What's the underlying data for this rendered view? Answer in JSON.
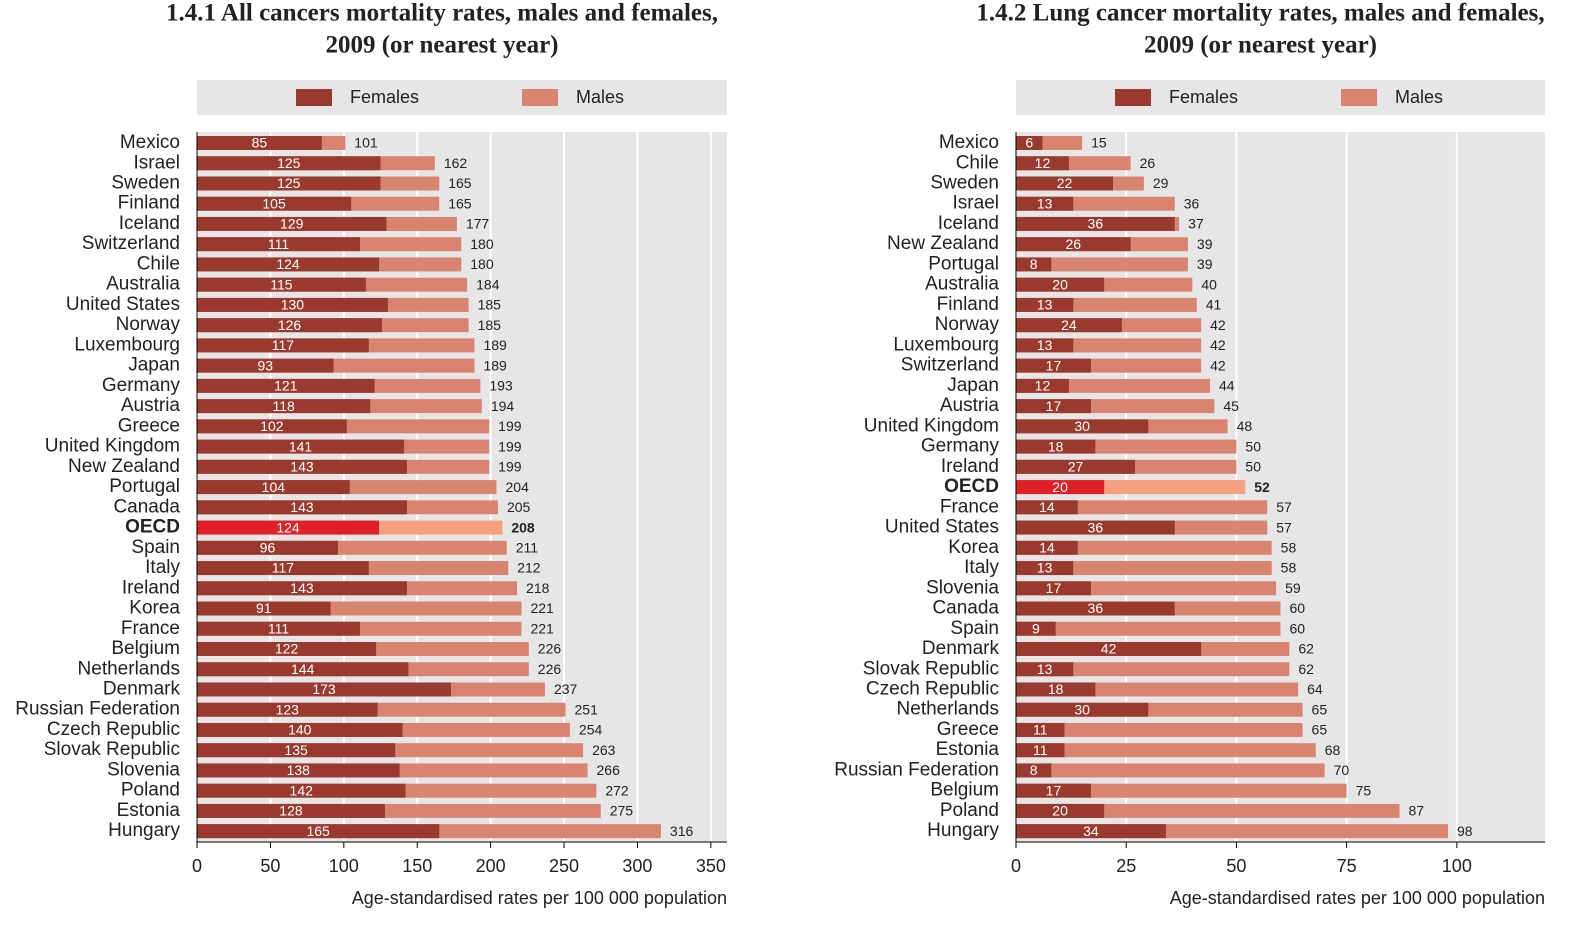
{
  "chart_data": [
    {
      "type": "bar",
      "orientation": "horizontal",
      "overlap": true,
      "title": [
        "1.4.1  All cancers mortality rates, males and females,",
        "2009 (or nearest year)"
      ],
      "xlabel": "Age-standardised rates per 100 000 population",
      "categories": [
        "Mexico",
        "Israel",
        "Sweden",
        "Finland",
        "Iceland",
        "Switzerland",
        "Chile",
        "Australia",
        "United States",
        "Norway",
        "Luxembourg",
        "Japan",
        "Germany",
        "Austria",
        "Greece",
        "United Kingdom",
        "New Zealand",
        "Portugal",
        "Canada",
        "OECD",
        "Spain",
        "Italy",
        "Ireland",
        "Korea",
        "France",
        "Belgium",
        "Netherlands",
        "Denmark",
        "Russian Federation",
        "Czech Republic",
        "Slovak Republic",
        "Slovenia",
        "Poland",
        "Estonia",
        "Hungary"
      ],
      "highlight": "OECD",
      "series": [
        {
          "name": "Females",
          "color": "#9a3a2f",
          "highlight_color": "#e01f26",
          "values": [
            85,
            125,
            125,
            105,
            129,
            111,
            124,
            115,
            130,
            126,
            117,
            93,
            121,
            118,
            102,
            141,
            143,
            104,
            143,
            124,
            96,
            117,
            143,
            91,
            111,
            122,
            144,
            173,
            123,
            140,
            135,
            138,
            142,
            128,
            165
          ]
        },
        {
          "name": "Males",
          "color": "#d98470",
          "highlight_color": "#f5a07f",
          "values": [
            101,
            162,
            165,
            165,
            177,
            180,
            180,
            184,
            185,
            185,
            189,
            189,
            193,
            194,
            199,
            199,
            199,
            204,
            205,
            208,
            211,
            212,
            218,
            221,
            221,
            226,
            226,
            237,
            251,
            254,
            263,
            266,
            272,
            275,
            316
          ]
        }
      ],
      "xlim": [
        0,
        361
      ],
      "xticks": [
        0,
        50,
        100,
        150,
        200,
        250,
        300,
        350
      ],
      "grid": true,
      "legend": "top"
    },
    {
      "type": "bar",
      "orientation": "horizontal",
      "overlap": true,
      "title": [
        "1.4.2  Lung cancer mortality rates, males and females,",
        "2009 (or nearest year)"
      ],
      "xlabel": "Age-standardised rates per 100 000 population",
      "categories": [
        "Mexico",
        "Chile",
        "Sweden",
        "Israel",
        "Iceland",
        "New Zealand",
        "Portugal",
        "Australia",
        "Finland",
        "Norway",
        "Luxembourg",
        "Switzerland",
        "Japan",
        "Austria",
        "United Kingdom",
        "Germany",
        "Ireland",
        "OECD",
        "France",
        "United States",
        "Korea",
        "Italy",
        "Slovenia",
        "Canada",
        "Spain",
        "Denmark",
        "Slovak Republic",
        "Czech Republic",
        "Netherlands",
        "Greece",
        "Estonia",
        "Russian Federation",
        "Belgium",
        "Poland",
        "Hungary"
      ],
      "highlight": "OECD",
      "series": [
        {
          "name": "Females",
          "color": "#9a3a2f",
          "highlight_color": "#e01f26",
          "values": [
            6,
            12,
            22,
            13,
            36,
            26,
            8,
            20,
            13,
            24,
            13,
            17,
            12,
            17,
            30,
            18,
            27,
            20,
            14,
            36,
            14,
            13,
            17,
            36,
            9,
            42,
            13,
            18,
            30,
            11,
            11,
            8,
            17,
            20,
            34
          ]
        },
        {
          "name": "Males",
          "color": "#d98470",
          "highlight_color": "#f5a07f",
          "values": [
            15,
            26,
            29,
            36,
            37,
            39,
            39,
            40,
            41,
            42,
            42,
            42,
            44,
            45,
            48,
            50,
            50,
            52,
            57,
            57,
            58,
            58,
            59,
            60,
            60,
            62,
            62,
            64,
            65,
            65,
            68,
            70,
            75,
            87,
            98
          ]
        }
      ],
      "xlim": [
        0,
        120
      ],
      "xticks": [
        0,
        25,
        50,
        75,
        100
      ],
      "grid": true,
      "legend": "top"
    }
  ]
}
